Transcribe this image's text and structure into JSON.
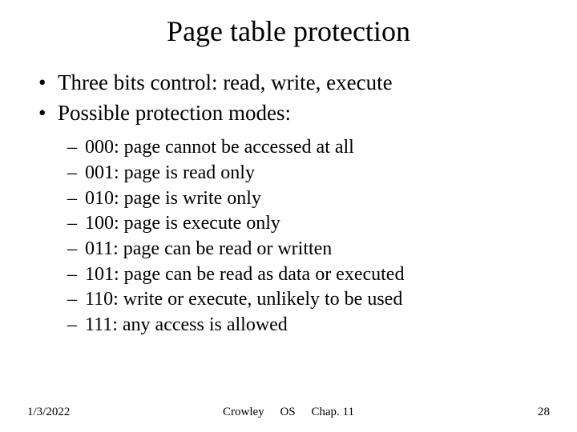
{
  "title": "Page table protection",
  "bullets": [
    "Three bits control: read, write, execute",
    "Possible protection modes:"
  ],
  "sub": [
    "000: page cannot be accessed at all",
    "001: page is read only",
    "010: page is write only",
    "100: page is execute only",
    "011: page can be read or written",
    "101: page can be read as data or executed",
    "110: write or execute, unlikely to be used",
    "111: any access is allowed"
  ],
  "footer": {
    "date": "1/3/2022",
    "center_author": "Crowley",
    "center_course": "OS",
    "center_chapter": "Chap. 11",
    "page": "28"
  }
}
